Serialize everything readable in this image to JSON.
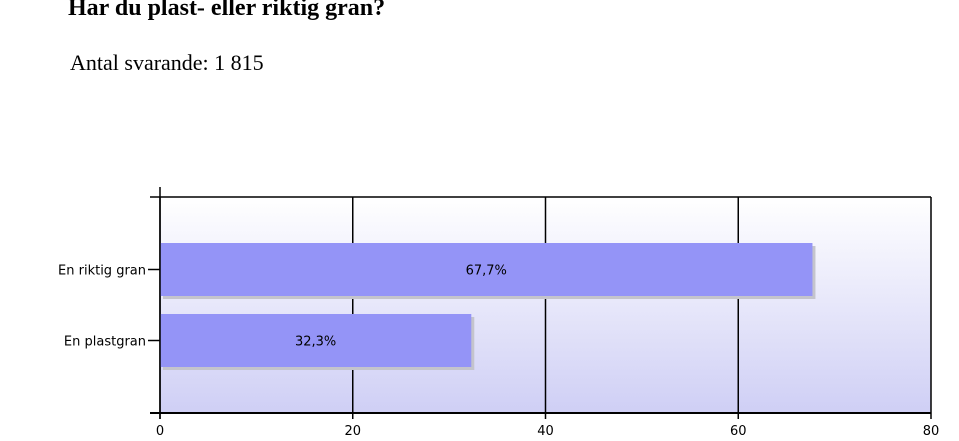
{
  "survey": {
    "question": "Har du plast- eller riktig gran?",
    "respondents": "Antal svarande: 1 815"
  },
  "colors": {
    "bar": "#9494f7",
    "bar_shadow": "#c4c4cc",
    "plot_top": "#ffffff",
    "plot_bottom": "#cfcff5",
    "grid": "#000000"
  },
  "chart_data": {
    "type": "bar",
    "orientation": "horizontal",
    "categories": [
      "En riktig gran",
      "En plastgran"
    ],
    "values": [
      67.7,
      32.3
    ],
    "data_labels": [
      "67,7%",
      "32,3%"
    ],
    "xlim": [
      0,
      80
    ],
    "xticks": [
      0,
      20,
      40,
      60,
      80
    ],
    "grid": true
  }
}
